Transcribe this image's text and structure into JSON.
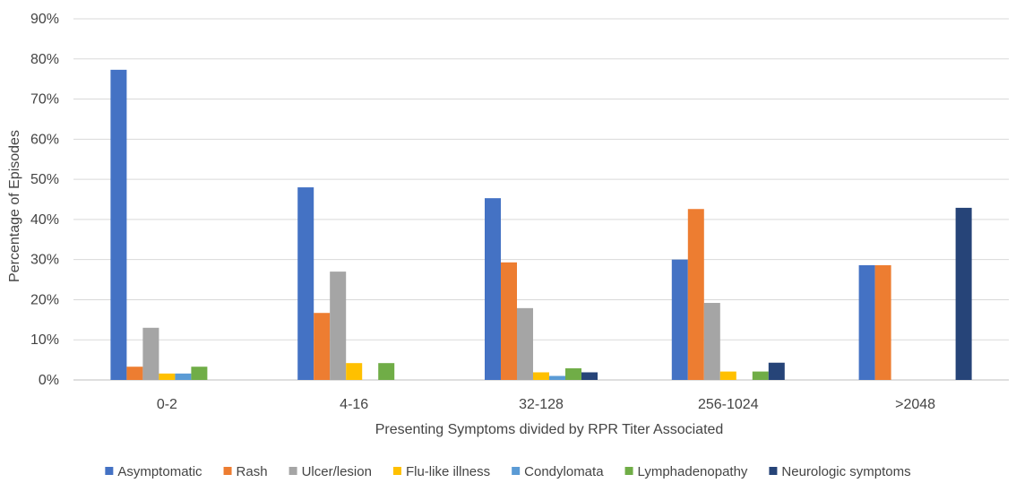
{
  "chart_data": {
    "type": "bar",
    "title": "",
    "xlabel": "Presenting Symptoms divided by RPR Titer Associated",
    "ylabel": "Percentage of Episodes",
    "ylim": [
      0,
      90
    ],
    "y_ticks": [
      "0%",
      "10%",
      "20%",
      "30%",
      "40%",
      "50%",
      "60%",
      "70%",
      "80%",
      "90%"
    ],
    "grid": true,
    "legend_position": "bottom",
    "categories": [
      "0-2",
      "4-16",
      "32-128",
      "256-1024",
      ">2048"
    ],
    "series": [
      {
        "name": "Asymptomatic",
        "color": "#4472c4",
        "values": [
          77.3,
          48,
          45.3,
          30,
          28.6
        ]
      },
      {
        "name": "Rash",
        "color": "#ed7d31",
        "values": [
          3.3,
          16.7,
          29.3,
          42.6,
          28.6
        ]
      },
      {
        "name": "Ulcer/lesion",
        "color": "#a5a5a5",
        "values": [
          13,
          27,
          17.9,
          19.2,
          0
        ]
      },
      {
        "name": "Flu-like illness",
        "color": "#ffc000",
        "values": [
          1.6,
          4.2,
          1.9,
          2.1,
          0
        ]
      },
      {
        "name": "Condylomata",
        "color": "#5b9bd5",
        "values": [
          1.6,
          0,
          1,
          0,
          0
        ]
      },
      {
        "name": "Lymphadenopathy",
        "color": "#70ad47",
        "values": [
          3.3,
          4.2,
          2.9,
          2.1,
          0
        ]
      },
      {
        "name": "Neurologic symptoms",
        "color": "#264478",
        "values": [
          0,
          0,
          1.9,
          4.3,
          42.9
        ]
      }
    ]
  }
}
